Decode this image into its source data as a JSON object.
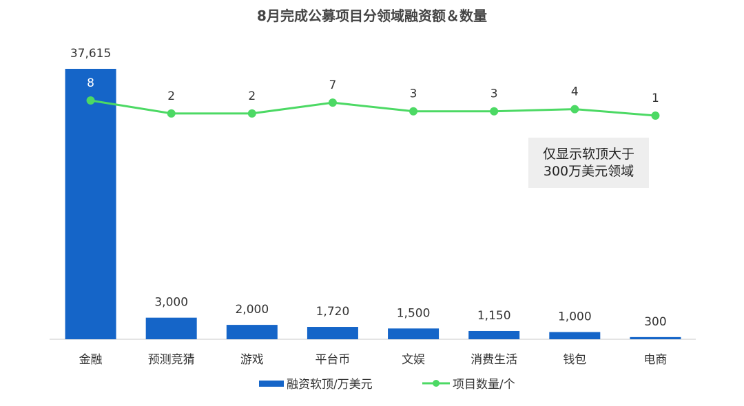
{
  "chart_data": {
    "type": "bar",
    "title": "8月完成公募项目分领域融资额＆数量",
    "categories": [
      "金融",
      "预测竞猜",
      "游戏",
      "平台币",
      "文娱",
      "消费生活",
      "钱包",
      "电商"
    ],
    "series": [
      {
        "name": "融资软顶/万美元",
        "type": "bar",
        "color": "#1565c8",
        "values": [
          37615,
          3000,
          2000,
          1720,
          1500,
          1150,
          1000,
          300
        ],
        "labels": [
          "37,615",
          "3,000",
          "2,000",
          "1,720",
          "1,500",
          "1,150",
          "1,000",
          "300"
        ]
      },
      {
        "name": "项目数量/个",
        "type": "line",
        "color": "#4cd964",
        "values": [
          8,
          2,
          2,
          7,
          3,
          3,
          4,
          1
        ]
      }
    ],
    "legend_position": "bottom",
    "grid": false
  },
  "annotation": {
    "line1": "仅显示软顶大于",
    "line2": "300万美元领域"
  }
}
